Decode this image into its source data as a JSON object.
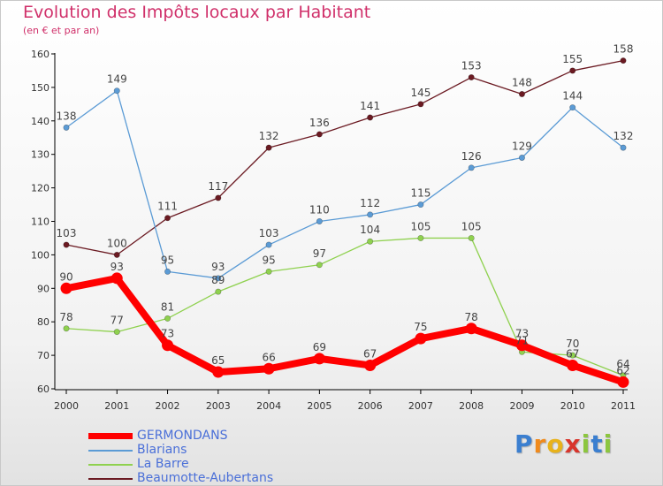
{
  "chart_data": {
    "type": "line",
    "title": "Evolution des Impôts locaux par Habitant",
    "subtitle": "(en € et par an)",
    "xlabel": "",
    "ylabel": "",
    "ylim": [
      60,
      160
    ],
    "yticks": [
      60,
      70,
      80,
      90,
      100,
      110,
      120,
      130,
      140,
      150,
      160
    ],
    "grid": false,
    "legend_position": "bottom-left",
    "x": [
      "2000",
      "2001",
      "2002",
      "2003",
      "2004",
      "2005",
      "2006",
      "2007",
      "2008",
      "2009",
      "2010",
      "2011"
    ],
    "series": [
      {
        "name": "Beaumotte-Aubertans",
        "color": "#6b1a22",
        "values": [
          103,
          100,
          111,
          117,
          132,
          136,
          141,
          145,
          153,
          148,
          155,
          158
        ],
        "labels": [
          "103",
          "100",
          "111",
          "117",
          "132",
          "136",
          "141",
          "145",
          "153",
          "148",
          "155",
          "158"
        ]
      },
      {
        "name": "Blarians",
        "color": "#5b9bd5",
        "values": [
          138,
          149,
          95,
          93,
          103,
          110,
          112,
          115,
          126,
          129,
          144,
          132
        ],
        "labels": [
          "138",
          "149",
          "95",
          "93",
          "103",
          "110",
          "112",
          "115",
          "126",
          "129",
          "144",
          "132"
        ]
      },
      {
        "name": "La Barre",
        "color": "#8fd14f",
        "values": [
          78,
          77,
          81,
          89,
          95,
          97,
          104,
          105,
          105,
          71,
          70,
          64
        ],
        "labels": [
          "78",
          "77",
          "81",
          "89",
          "95",
          "97",
          "104",
          "105",
          "105",
          "71",
          "70",
          "64"
        ]
      },
      {
        "name": "GERMONDANS",
        "color": "#ff0000",
        "values": [
          90,
          93,
          73,
          65,
          66,
          69,
          67,
          75,
          78,
          73,
          67,
          62
        ],
        "labels": [
          "90",
          "93",
          "73",
          "65",
          "66",
          "69",
          "67",
          "75",
          "78",
          "73",
          "67",
          "62"
        ]
      }
    ]
  },
  "legend": {
    "items": [
      {
        "label": "GERMONDANS",
        "color": "#ff0000"
      },
      {
        "label": "Blarians",
        "color": "#5b9bd5"
      },
      {
        "label": "La Barre",
        "color": "#8fd14f"
      },
      {
        "label": "Beaumotte-Aubertans",
        "color": "#6b1a22"
      }
    ]
  },
  "logo": {
    "letters": [
      "P",
      "r",
      "o",
      "x",
      "i",
      "t",
      "i"
    ],
    "colors": [
      "#3b7fd0",
      "#f08a1c",
      "#e8b21a",
      "#d8342b",
      "#8cc63f",
      "#3b7fd0",
      "#8cc63f"
    ]
  }
}
